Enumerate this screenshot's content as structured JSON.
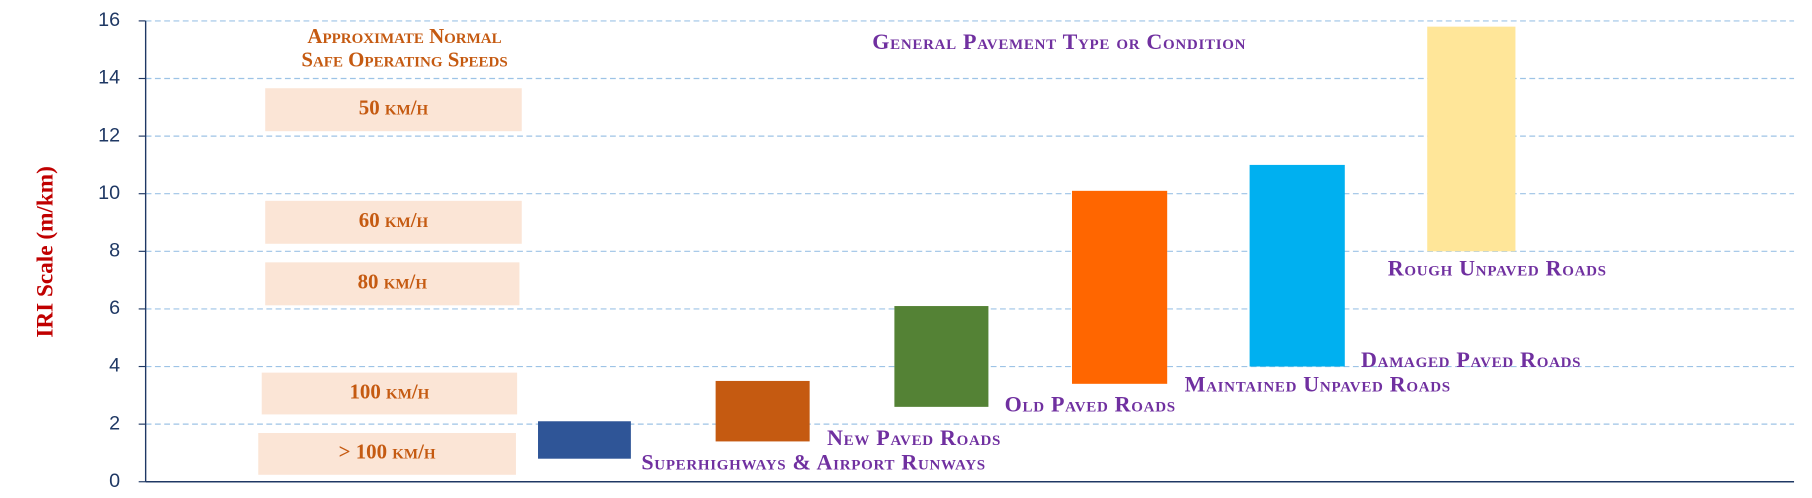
{
  "chart_data": {
    "type": "floating_bar",
    "title": "General Pavement Type or Condition",
    "ylabel": "IRI Scale (m/km)",
    "categories": [
      "Superhighways & Airport Runways",
      "New Paved Roads",
      "Old Paved Roads",
      "Maintained Unpaved Roads",
      "Damaged Paved Roads",
      "Rough Unpaved Roads"
    ],
    "low": [
      0.8,
      1.4,
      2.6,
      3.4,
      4,
      8
    ],
    "high": [
      2.1,
      3.5,
      6.1,
      10.1,
      11,
      15.8
    ],
    "colors": [
      "#2f5597",
      "#c55a11",
      "#548235",
      "#ff6600",
      "#00b0f0",
      "#ffe699"
    ],
    "ylim": [
      0,
      16
    ],
    "yticks": [
      0,
      2,
      4,
      6,
      8,
      10,
      12,
      14,
      16
    ],
    "grid": true,
    "speed_title": [
      "Approximate Normal",
      "Safe Operating Speeds"
    ],
    "speed_bands": [
      "50 km/h",
      "60 km/h",
      "80 km/h",
      "100 km/h",
      "> 100 km/h"
    ]
  }
}
